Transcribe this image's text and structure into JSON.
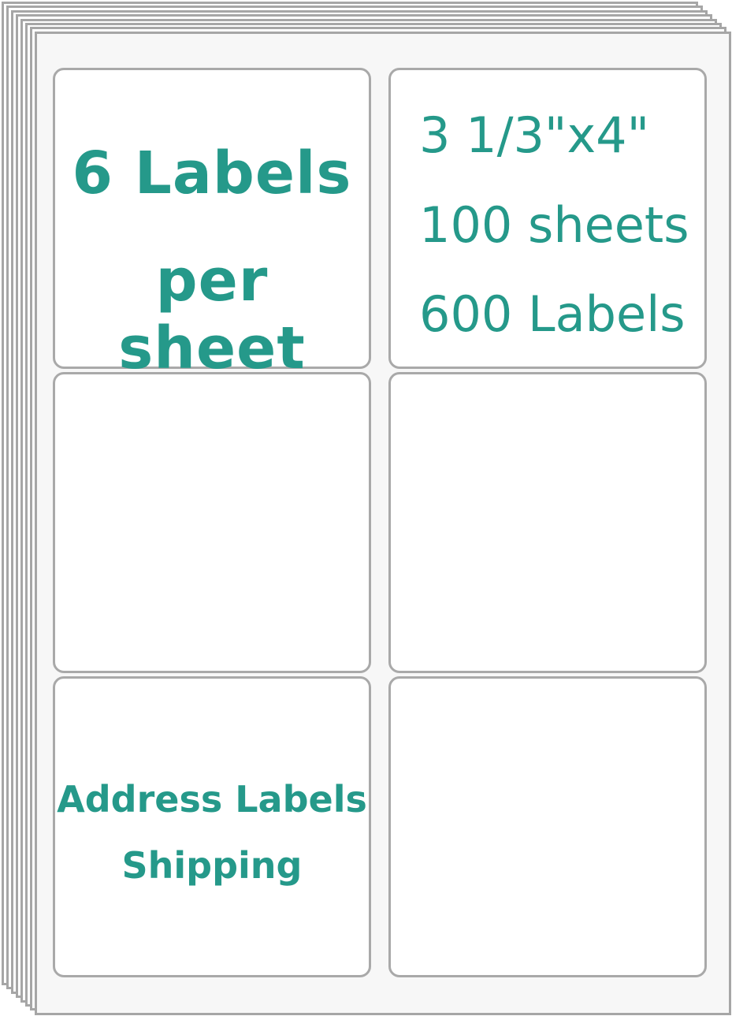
{
  "sheet_count_shown": 8,
  "colors": {
    "accent": "#25998a",
    "border": "#a6a6a6",
    "sheet": "#f7f7f7"
  },
  "labels": {
    "top_left": {
      "line1": "6 Labels",
      "line2": "per sheet"
    },
    "top_right": {
      "size": "3 1/3\"x4\"",
      "sheets": "100 sheets",
      "count": "600 Labels"
    },
    "bottom_left": {
      "line1": "Address Labels",
      "line2": "Shipping"
    }
  }
}
